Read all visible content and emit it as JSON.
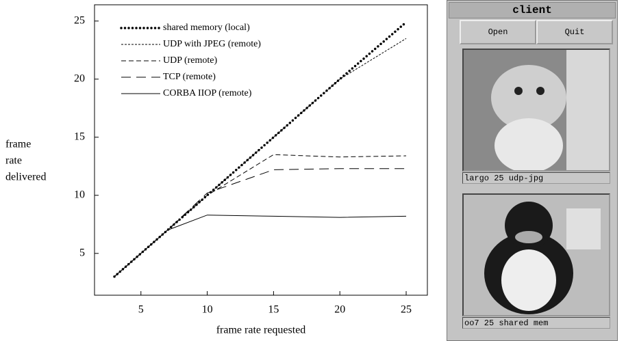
{
  "chart_data": {
    "type": "line",
    "xlabel": "frame rate requested",
    "ylabel": [
      "frame",
      "rate",
      "delivered"
    ],
    "x": [
      3,
      5,
      7,
      10,
      15,
      20,
      25
    ],
    "series": [
      {
        "name": "shared memory (local)",
        "color": "#000000",
        "dash": "dotted",
        "values": [
          3,
          5,
          7,
          10,
          15,
          20,
          24.9
        ]
      },
      {
        "name": "UDP with JPEG (remote)",
        "color": "#000000",
        "dash": "fine",
        "values": [
          3,
          5,
          7,
          10,
          15,
          20,
          23.5
        ]
      },
      {
        "name": "UDP (remote)",
        "color": "#000000",
        "dash": "medium",
        "values": [
          3,
          5,
          7,
          10,
          13.5,
          13.3,
          13.4
        ]
      },
      {
        "name": "TCP (remote)",
        "color": "#000000",
        "dash": "long",
        "values": [
          3,
          5,
          7,
          10.2,
          12.2,
          12.3,
          12.3
        ]
      },
      {
        "name": "CORBA IIOP (remote)",
        "color": "#000000",
        "dash": "solid",
        "values": [
          3,
          5,
          7,
          8.3,
          8.2,
          8.1,
          8.2
        ]
      }
    ],
    "xlim": [
      1.5,
      26.6
    ],
    "xticks": [
      5,
      10,
      15,
      20,
      25
    ],
    "ylim": [
      1.4,
      26.4
    ],
    "yticks": [
      5,
      10,
      15,
      20,
      25
    ],
    "legend": "upper left"
  },
  "window": {
    "title": "client",
    "buttons": [
      "Open",
      "Quit"
    ],
    "views": [
      {
        "caption": "largo 25 udp-jpg"
      },
      {
        "caption": "oo7 25 shared mem"
      }
    ]
  }
}
